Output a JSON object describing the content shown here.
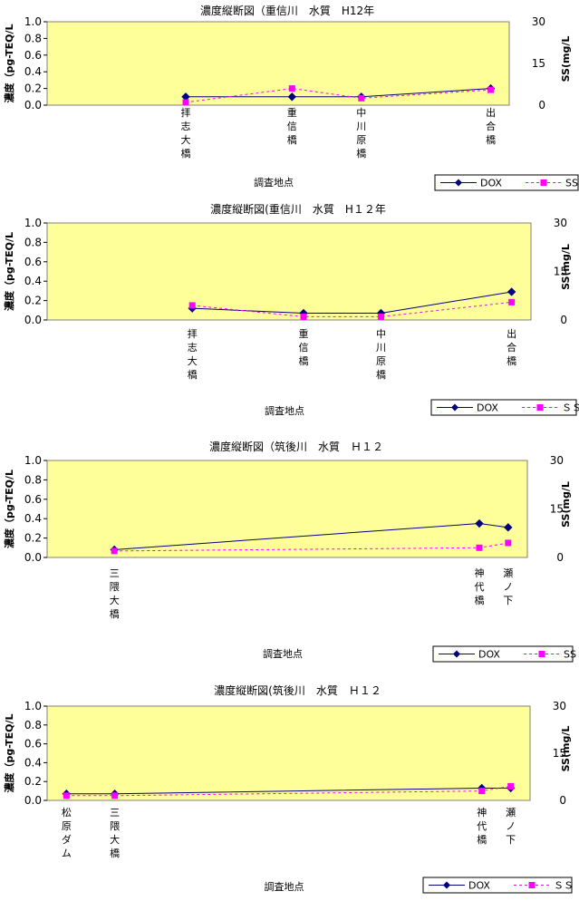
{
  "chart_data": [
    {
      "type": "line",
      "title": "濃度縦断図（重信川　水質　H12年",
      "xlabel": "調査地点",
      "ylabel": "濃度（pg-TEQ/L",
      "y2label": "SS(mg/L",
      "ylim": [
        0,
        1.0
      ],
      "y2lim": [
        0,
        30
      ],
      "yticks": [
        "0.0",
        "0.2",
        "0.4",
        "0.6",
        "0.8",
        "1.0"
      ],
      "y2ticks": [
        "0",
        "15",
        "30"
      ],
      "categories": [
        {
          "label": "拝志大橋",
          "pos": 0.3
        },
        {
          "label": "重信橋",
          "pos": 0.53
        },
        {
          "label": "中川原橋",
          "pos": 0.68
        },
        {
          "label": "出合橋",
          "pos": 0.96
        }
      ],
      "series": [
        {
          "name": "DOX",
          "axis": "left",
          "values": [
            0.1,
            0.1,
            0.1,
            0.2
          ]
        },
        {
          "name": "SS",
          "axis": "right",
          "values": [
            1.0,
            6.0,
            2.5,
            5.5
          ]
        }
      ],
      "legend": "bottom-right",
      "grid": false,
      "plot_bg": "#ffff99"
    },
    {
      "type": "line",
      "title": "濃度縦断図(重信川　水質　H１２年",
      "xlabel": "調査地点",
      "ylabel": "濃度（pg-TEQ/L",
      "y2label": "SS(mg/L",
      "ylim": [
        0,
        1.0
      ],
      "y2lim": [
        0,
        30
      ],
      "yticks": [
        "0.0",
        "0.2",
        "0.4",
        "0.6",
        "0.8",
        "1.0"
      ],
      "y2ticks": [
        "0",
        "15",
        "30"
      ],
      "categories": [
        {
          "label": "拝志大橋",
          "pos": 0.3
        },
        {
          "label": "重信橋",
          "pos": 0.53
        },
        {
          "label": "中川原橋",
          "pos": 0.69
        },
        {
          "label": "出合橋",
          "pos": 0.96
        }
      ],
      "series": [
        {
          "name": "DOX",
          "axis": "left",
          "values": [
            0.12,
            0.07,
            0.07,
            0.29
          ]
        },
        {
          "name": "ＳＳ",
          "axis": "right",
          "values": [
            4.5,
            1.0,
            1.0,
            5.5
          ]
        }
      ],
      "legend": "bottom-right",
      "grid": false,
      "plot_bg": "#ffff99"
    },
    {
      "type": "line",
      "title": "濃度縦断図（筑後川　水質　Ｈ１２",
      "xlabel": "調査地点",
      "ylabel": "濃度（pg-TEQ/L",
      "y2label": "SS(mg/L",
      "ylim": [
        0,
        1.0
      ],
      "y2lim": [
        0,
        30
      ],
      "yticks": [
        "0.0",
        "0.2",
        "0.4",
        "0.6",
        "0.8",
        "1.0"
      ],
      "y2ticks": [
        "0",
        "15",
        "30"
      ],
      "categories": [
        {
          "label": "三隈大橋",
          "pos": 0.14
        },
        {
          "label": "神代橋",
          "pos": 0.9
        },
        {
          "label": "瀬ノ下",
          "pos": 0.96
        }
      ],
      "series": [
        {
          "name": "DOX",
          "axis": "left",
          "values": [
            0.08,
            0.35,
            0.31
          ]
        },
        {
          "name": "SS",
          "axis": "right",
          "values": [
            2.0,
            3.0,
            4.5
          ]
        }
      ],
      "legend": "bottom-right",
      "grid": false,
      "plot_bg": "#ffff99"
    },
    {
      "type": "line",
      "title": "濃度縦断図(筑後川　水質　Ｈ１２",
      "xlabel": "調査地点",
      "ylabel": "濃度（pg-TEQ/L",
      "y2label": "SS(mg/L",
      "ylim": [
        0,
        1.0
      ],
      "y2lim": [
        0,
        30
      ],
      "yticks": [
        "0.0",
        "0.2",
        "0.4",
        "0.6",
        "0.8",
        "1.0"
      ],
      "y2ticks": [
        "0",
        "15",
        "30"
      ],
      "categories": [
        {
          "label": "松原ダム",
          "pos": 0.04
        },
        {
          "label": "三隈大橋",
          "pos": 0.14
        },
        {
          "label": "神代橋",
          "pos": 0.9
        },
        {
          "label": "瀬ノ下",
          "pos": 0.96
        }
      ],
      "series": [
        {
          "name": "DOX",
          "axis": "left",
          "values": [
            0.07,
            0.07,
            0.13,
            0.13
          ]
        },
        {
          "name": "ＳＳ",
          "axis": "right",
          "values": [
            1.5,
            1.5,
            3.0,
            4.5
          ]
        }
      ],
      "legend": "bottom-right",
      "grid": false,
      "plot_bg": "#ffff99"
    }
  ],
  "colors": {
    "dox": "#000080",
    "ss": "#ff00ff"
  }
}
